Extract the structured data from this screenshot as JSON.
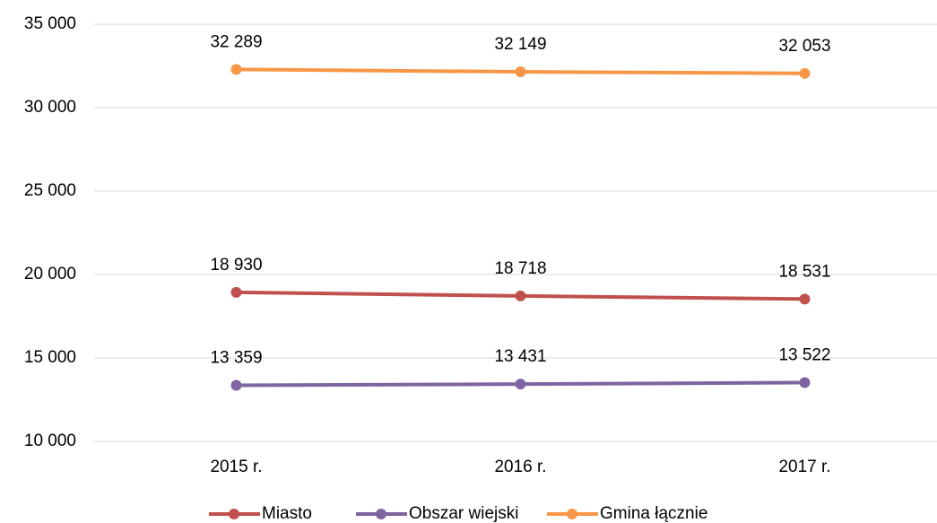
{
  "chart_data": {
    "type": "line",
    "categories": [
      "2015 r.",
      "2016 r.",
      "2017 r."
    ],
    "series": [
      {
        "name": "Miasto",
        "color": "#c0504d",
        "values": [
          18930,
          18718,
          18531
        ],
        "value_labels": [
          "18 930",
          "18 718",
          "18 531"
        ]
      },
      {
        "name": "Obszar wiejski",
        "color": "#8064a2",
        "values": [
          13359,
          13431,
          13522
        ],
        "value_labels": [
          "13 359",
          "13 431",
          "13 522"
        ]
      },
      {
        "name": "Gmina łącznie",
        "color": "#f79646",
        "values": [
          32289,
          32149,
          32053
        ],
        "value_labels": [
          "32 289",
          "32 149",
          "32 053"
        ]
      }
    ],
    "ylim": [
      10000,
      35000
    ],
    "yticks": [
      {
        "value": 10000,
        "label": "10 000"
      },
      {
        "value": 15000,
        "label": "15 000"
      },
      {
        "value": 20000,
        "label": "20 000"
      },
      {
        "value": 25000,
        "label": "25 000"
      },
      {
        "value": 30000,
        "label": "30 000"
      },
      {
        "value": 35000,
        "label": "35 000"
      }
    ],
    "grid": true,
    "legend": "bottom"
  }
}
